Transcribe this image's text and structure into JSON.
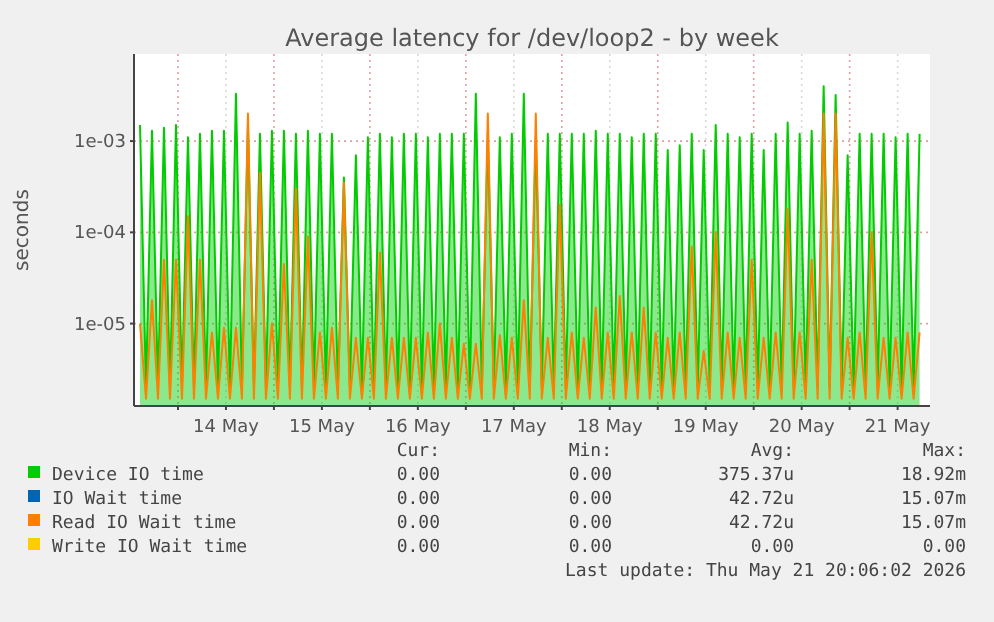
{
  "chart_data": {
    "type": "line",
    "title": "Average latency for /dev/loop2 - by week",
    "ylabel": "seconds",
    "log": "y",
    "grid": true,
    "legend": "bottom left",
    "ylim": [
      1.25e-06,
      0.009
    ],
    "yticks": [
      {
        "value": 1e-05,
        "label": "1e-05"
      },
      {
        "value": 0.0001,
        "label": "1e-04"
      },
      {
        "value": 0.001,
        "label": "1e-03"
      }
    ],
    "xlim": [
      "2026-05-13T13:00",
      "2026-05-21T20:06"
    ],
    "xticks": [
      {
        "value": "2026-05-14T00:00",
        "label": null
      },
      {
        "value": "2026-05-14T12:00",
        "label": "14 May"
      },
      {
        "value": "2026-05-15T00:00",
        "label": null
      },
      {
        "value": "2026-05-15T12:00",
        "label": "15 May"
      },
      {
        "value": "2026-05-16T00:00",
        "label": null
      },
      {
        "value": "2026-05-16T12:00",
        "label": "16 May"
      },
      {
        "value": "2026-05-17T00:00",
        "label": null
      },
      {
        "value": "2026-05-17T12:00",
        "label": "17 May"
      },
      {
        "value": "2026-05-18T00:00",
        "label": null
      },
      {
        "value": "2026-05-18T12:00",
        "label": "18 May"
      },
      {
        "value": "2026-05-19T00:00",
        "label": null
      },
      {
        "value": "2026-05-19T12:00",
        "label": "19 May"
      },
      {
        "value": "2026-05-20T00:00",
        "label": null
      },
      {
        "value": "2026-05-20T12:00",
        "label": "20 May"
      },
      {
        "value": "2026-05-21T00:00",
        "label": null
      },
      {
        "value": "2026-05-21T12:00",
        "label": "21 May"
      }
    ],
    "x": [
      "2026-05-13T14:30",
      "2026-05-13T16:00",
      "2026-05-13T17:30",
      "2026-05-13T19:00",
      "2026-05-13T20:30",
      "2026-05-13T22:00",
      "2026-05-13T23:30",
      "2026-05-14T01:00",
      "2026-05-14T02:30",
      "2026-05-14T04:00",
      "2026-05-14T05:30",
      "2026-05-14T07:00",
      "2026-05-14T08:30",
      "2026-05-14T10:00",
      "2026-05-14T11:30",
      "2026-05-14T13:00",
      "2026-05-14T14:30",
      "2026-05-14T16:00",
      "2026-05-14T17:30",
      "2026-05-14T19:00",
      "2026-05-14T20:30",
      "2026-05-14T22:00",
      "2026-05-14T23:30",
      "2026-05-15T01:00",
      "2026-05-15T02:30",
      "2026-05-15T04:00",
      "2026-05-15T05:30",
      "2026-05-15T07:00",
      "2026-05-15T08:30",
      "2026-05-15T10:00",
      "2026-05-15T11:30",
      "2026-05-15T13:00",
      "2026-05-15T14:30",
      "2026-05-15T16:00",
      "2026-05-15T17:30",
      "2026-05-15T19:00",
      "2026-05-15T20:30",
      "2026-05-15T22:00",
      "2026-05-15T23:30",
      "2026-05-16T01:00",
      "2026-05-16T02:30",
      "2026-05-16T04:00",
      "2026-05-16T05:30",
      "2026-05-16T07:00",
      "2026-05-16T08:30",
      "2026-05-16T10:00",
      "2026-05-16T11:30",
      "2026-05-16T13:00",
      "2026-05-16T14:30",
      "2026-05-16T16:00",
      "2026-05-16T17:30",
      "2026-05-16T19:00",
      "2026-05-16T20:30",
      "2026-05-16T22:00",
      "2026-05-16T23:30",
      "2026-05-17T01:00",
      "2026-05-17T02:30",
      "2026-05-17T04:00",
      "2026-05-17T05:30",
      "2026-05-17T07:00",
      "2026-05-17T08:30",
      "2026-05-17T10:00",
      "2026-05-17T11:30",
      "2026-05-17T13:00",
      "2026-05-17T14:30",
      "2026-05-17T16:00",
      "2026-05-17T17:30",
      "2026-05-17T19:00",
      "2026-05-17T20:30",
      "2026-05-17T22:00",
      "2026-05-17T23:30",
      "2026-05-18T01:00",
      "2026-05-18T02:30",
      "2026-05-18T04:00",
      "2026-05-18T05:30",
      "2026-05-18T07:00",
      "2026-05-18T08:30",
      "2026-05-18T10:00",
      "2026-05-18T11:30",
      "2026-05-18T13:00",
      "2026-05-18T14:30",
      "2026-05-18T16:00",
      "2026-05-18T17:30",
      "2026-05-18T19:00",
      "2026-05-18T20:30",
      "2026-05-18T22:00",
      "2026-05-18T23:30",
      "2026-05-19T01:00",
      "2026-05-19T02:30",
      "2026-05-19T04:00",
      "2026-05-19T05:30",
      "2026-05-19T07:00",
      "2026-05-19T08:30",
      "2026-05-19T10:00",
      "2026-05-19T11:30",
      "2026-05-19T13:00",
      "2026-05-19T14:30",
      "2026-05-19T16:00",
      "2026-05-19T17:30",
      "2026-05-19T19:00",
      "2026-05-19T20:30",
      "2026-05-19T22:00",
      "2026-05-19T23:30",
      "2026-05-20T01:00",
      "2026-05-20T02:30",
      "2026-05-20T04:00",
      "2026-05-20T05:30",
      "2026-05-20T07:00",
      "2026-05-20T08:30",
      "2026-05-20T10:00",
      "2026-05-20T11:30",
      "2026-05-20T13:00",
      "2026-05-20T14:30",
      "2026-05-20T16:00",
      "2026-05-20T17:30",
      "2026-05-20T19:00",
      "2026-05-20T20:30",
      "2026-05-20T22:00",
      "2026-05-20T23:30",
      "2026-05-21T01:00",
      "2026-05-21T02:30",
      "2026-05-21T04:00",
      "2026-05-21T05:30",
      "2026-05-21T07:00",
      "2026-05-21T08:30",
      "2026-05-21T10:00",
      "2026-05-21T11:30",
      "2026-05-21T13:00",
      "2026-05-21T14:30",
      "2026-05-21T16:00",
      "2026-05-21T17:30"
    ],
    "series": [
      {
        "name": "Device IO time",
        "type": "area",
        "color": "#00cc00",
        "values": [
          0.0015,
          2e-06,
          0.0013,
          2e-06,
          0.0014,
          2e-06,
          0.0015,
          2e-06,
          0.0011,
          2e-06,
          0.0012,
          2e-06,
          0.0013,
          2e-06,
          0.0013,
          2e-06,
          0.0033,
          2e-06,
          0.0015,
          2e-06,
          0.0012,
          2e-06,
          0.0013,
          2e-06,
          0.0013,
          2e-06,
          0.0012,
          2e-06,
          0.0013,
          2e-06,
          0.0012,
          2e-06,
          0.0012,
          2e-06,
          0.0004,
          2e-06,
          0.0007,
          2e-06,
          0.0011,
          2e-06,
          0.0012,
          2e-06,
          0.0011,
          2e-06,
          0.0012,
          2e-06,
          0.0012,
          2e-06,
          0.0011,
          2e-06,
          0.0012,
          2e-06,
          0.0012,
          2e-06,
          0.0012,
          2e-06,
          0.0033,
          2e-06,
          0.0012,
          2e-06,
          0.0011,
          2e-06,
          0.0012,
          2e-06,
          0.0033,
          2e-06,
          0.0011,
          2e-06,
          0.0012,
          2e-06,
          0.0012,
          2e-06,
          0.0012,
          2e-06,
          0.0012,
          2e-06,
          0.0013,
          2e-06,
          0.0012,
          2e-06,
          0.0012,
          2e-06,
          0.0011,
          2e-06,
          0.0012,
          2e-06,
          0.0012,
          2e-06,
          0.0008,
          2e-06,
          0.0009,
          2e-06,
          0.0012,
          2e-06,
          0.0008,
          2e-06,
          0.0015,
          2e-06,
          0.0012,
          2e-06,
          0.0011,
          2e-06,
          0.0012,
          2e-06,
          0.0008,
          2e-06,
          0.0012,
          2e-06,
          0.0016,
          2e-06,
          0.0012,
          2e-06,
          0.0013,
          2e-06,
          0.004,
          2e-06,
          0.0032,
          2e-06,
          0.0007,
          2e-06,
          0.0012,
          2e-06,
          0.0012,
          2e-06,
          0.0012,
          2e-06,
          0.0011,
          2e-06,
          0.0012,
          2e-06,
          0.0012
        ]
      },
      {
        "name": "IO Wait time",
        "color": "#0066b3",
        "values": [
          null,
          null,
          null,
          null,
          null,
          null,
          null,
          null,
          null,
          null,
          null,
          null,
          null,
          null,
          null,
          null,
          null,
          null,
          null,
          null,
          null,
          null,
          null,
          null,
          null,
          null,
          null,
          null,
          null,
          null,
          null,
          null,
          null,
          null,
          null,
          null,
          null,
          null,
          null,
          null,
          null,
          null,
          null,
          null,
          null,
          null,
          null,
          null,
          null,
          null,
          null,
          null,
          null,
          null,
          null,
          null,
          null,
          null,
          null,
          null,
          null,
          null,
          null,
          null,
          null,
          null,
          null,
          null,
          null,
          null,
          null,
          null,
          null,
          null,
          null,
          null,
          null,
          null,
          null,
          null,
          null,
          null,
          null,
          null,
          null,
          null,
          null,
          null,
          null,
          null,
          null,
          null,
          null,
          null,
          null,
          null,
          null,
          null,
          null,
          null,
          null,
          null,
          null,
          null,
          null,
          null,
          null,
          null,
          null,
          null,
          null,
          null,
          null,
          null,
          null,
          null,
          null,
          null,
          null,
          null,
          null,
          null,
          null,
          null,
          null,
          null,
          null,
          null,
          null,
          null,
          null
        ]
      },
      {
        "name": "Read IO Wait time",
        "color": "#ff8000",
        "values": [
          1e-05,
          1.5e-06,
          1.8e-05,
          1.5e-06,
          5e-05,
          1.5e-06,
          5e-05,
          1.5e-06,
          0.00015,
          1.5e-06,
          5e-05,
          1.5e-06,
          8e-06,
          1.5e-06,
          9e-06,
          1.5e-06,
          9e-06,
          1.5e-06,
          0.002,
          1.5e-06,
          0.00045,
          1.5e-06,
          1e-05,
          1.5e-06,
          4.5e-05,
          1.5e-06,
          0.0003,
          1.5e-06,
          9e-05,
          1.5e-06,
          8e-06,
          1.5e-06,
          9e-06,
          1.5e-06,
          0.00035,
          1.5e-06,
          7e-06,
          1.5e-06,
          7e-06,
          1.5e-06,
          6e-05,
          1.5e-06,
          7e-06,
          1.5e-06,
          7e-06,
          1.5e-06,
          7e-06,
          1.5e-06,
          8e-06,
          1.5e-06,
          1e-05,
          1.5e-06,
          7e-06,
          1.5e-06,
          6e-06,
          1.5e-06,
          6e-06,
          1.5e-06,
          0.002,
          1.5e-06,
          7.5e-06,
          1.5e-06,
          7e-06,
          1.5e-06,
          1.8e-05,
          1.5e-06,
          0.002,
          1.5e-06,
          7e-06,
          1.5e-06,
          0.0002,
          1.5e-06,
          8e-06,
          1.5e-06,
          7e-06,
          1.5e-06,
          1.5e-05,
          1.5e-06,
          8e-06,
          1.5e-06,
          2e-05,
          1.5e-06,
          8e-06,
          1.5e-06,
          1.5e-05,
          1.5e-06,
          8e-06,
          1.5e-06,
          7e-06,
          1.5e-06,
          8e-06,
          1.5e-06,
          7e-05,
          1.5e-06,
          5e-06,
          1.5e-06,
          0.0001,
          1.5e-06,
          8e-06,
          1.5e-06,
          7e-06,
          1.5e-06,
          5e-05,
          1.5e-06,
          7e-06,
          1.5e-06,
          8e-06,
          1.5e-06,
          0.00018,
          1.5e-06,
          8e-06,
          1.5e-06,
          5e-05,
          1.5e-06,
          0.002,
          1.5e-06,
          0.002,
          1.5e-06,
          7e-06,
          1.5e-06,
          8e-06,
          1.5e-06,
          0.0001,
          1.5e-06,
          7e-06,
          1.5e-06,
          7e-06,
          1.5e-06,
          8e-06,
          1.5e-06,
          8e-06
        ]
      },
      {
        "name": "Write IO Wait time",
        "color": "#ffcc00",
        "values": [
          null,
          null,
          null,
          null,
          null,
          null,
          null,
          null,
          null,
          null,
          null,
          null,
          null,
          null,
          null,
          null,
          null,
          null,
          null,
          null,
          null,
          null,
          null,
          null,
          null,
          null,
          null,
          null,
          null,
          null,
          null,
          null,
          null,
          null,
          null,
          null,
          null,
          null,
          null,
          null,
          null,
          null,
          null,
          null,
          null,
          null,
          null,
          null,
          null,
          null,
          null,
          null,
          null,
          null,
          null,
          null,
          null,
          null,
          null,
          null,
          null,
          null,
          null,
          null,
          null,
          null,
          null,
          null,
          null,
          null,
          null,
          null,
          null,
          null,
          null,
          null,
          null,
          null,
          null,
          null,
          null,
          null,
          null,
          null,
          null,
          null,
          null,
          null,
          null,
          null,
          null,
          null,
          null,
          null,
          null,
          null,
          null,
          null,
          null,
          null,
          null,
          null,
          null,
          null,
          null,
          null,
          null,
          null,
          null,
          null,
          null,
          null,
          null,
          null,
          null,
          null,
          null,
          null,
          null,
          null,
          null,
          null,
          null,
          null,
          null,
          null,
          null,
          null,
          null,
          null,
          null
        ]
      }
    ],
    "annotations": [
      "Cur:",
      "Min:",
      "Avg:",
      "Max:",
      "0.00",
      "0.00",
      "375.37u",
      "18.92m",
      "0.00",
      "0.00",
      "42.72u",
      "15.07m",
      "0.00",
      "0.00",
      "42.72u",
      "15.07m",
      "0.00",
      "0.00",
      "0.00",
      "0.00",
      "Last update: Thu May 21 20:06:02 2026"
    ]
  }
}
